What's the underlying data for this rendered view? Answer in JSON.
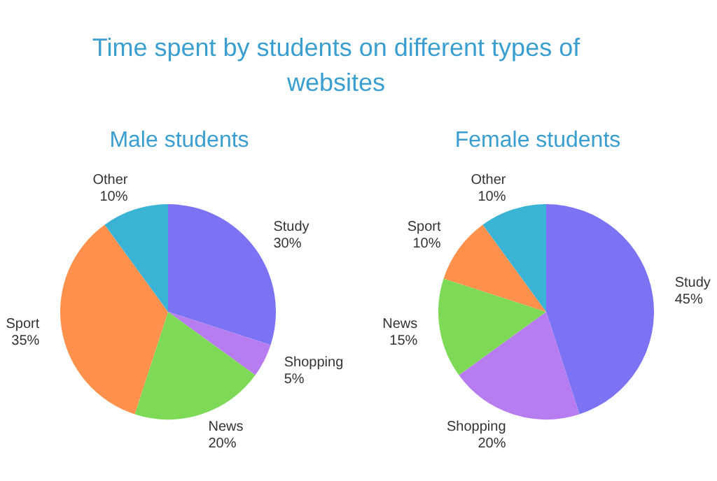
{
  "chart_data": [
    {
      "type": "pie",
      "title": "Male students",
      "annotations": [
        "Time spent by students on different types of websites"
      ],
      "categories": [
        "Study",
        "Shopping",
        "News",
        "Sport",
        "Other"
      ],
      "values": [
        30,
        5,
        20,
        35,
        10
      ],
      "colors": [
        "#7b72f4",
        "#b67cf0",
        "#7ed957",
        "#ff914d",
        "#3ab3d4"
      ],
      "value_labels": [
        "30%",
        "5%",
        "20%",
        "35%",
        "10%"
      ]
    },
    {
      "type": "pie",
      "title": "Female students",
      "categories": [
        "Study",
        "Shopping",
        "News",
        "Sport",
        "Other"
      ],
      "values": [
        45,
        20,
        15,
        10,
        10
      ],
      "colors": [
        "#7b72f4",
        "#b67cf0",
        "#7ed957",
        "#ff914d",
        "#3ab3d4"
      ],
      "value_labels": [
        "45%",
        "20%",
        "15%",
        "10%",
        "10%"
      ]
    }
  ]
}
